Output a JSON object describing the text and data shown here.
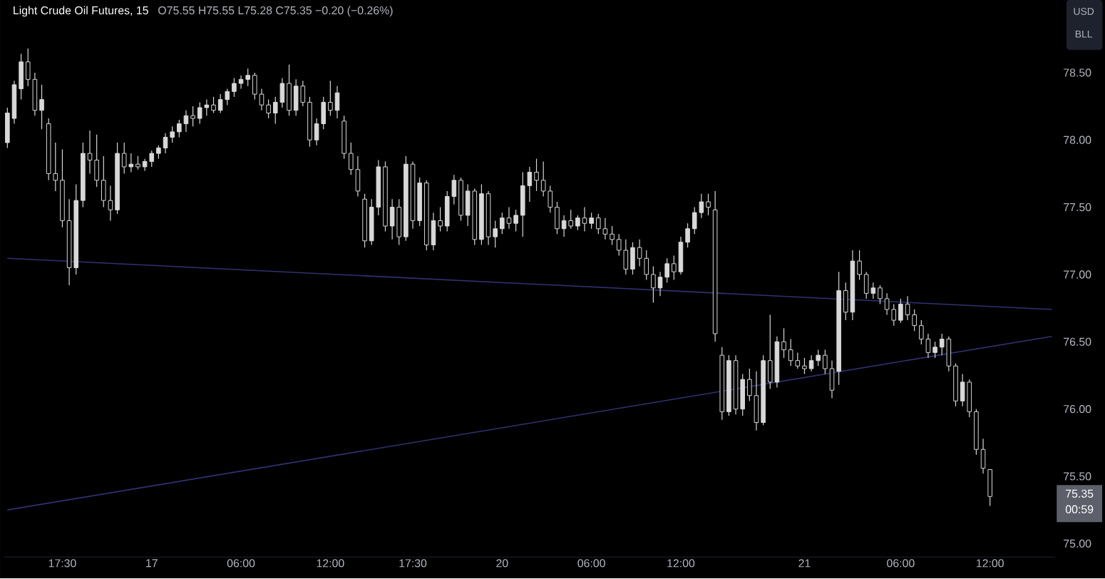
{
  "chart_data": {
    "type": "candlestick",
    "title": "Light Crude Oil Futures, 15",
    "subtitle": "O75.55 H75.55 L75.28 C75.35 −0.20 (−0.26%)",
    "annotations": [
      "USD",
      "BLL",
      "75.35",
      "00:59"
    ],
    "ylim": [
      74.9,
      79.04
    ],
    "categories": [
      null,
      null,
      null,
      null,
      null,
      null,
      null,
      null,
      "17:30",
      null,
      null,
      null,
      null,
      null,
      null,
      null,
      null,
      null,
      null,
      null,
      null,
      "17",
      null,
      null,
      null,
      null,
      null,
      null,
      null,
      null,
      null,
      null,
      null,
      null,
      "06:00",
      null,
      null,
      null,
      null,
      null,
      null,
      null,
      null,
      null,
      null,
      null,
      null,
      "12:00",
      null,
      null,
      null,
      null,
      null,
      null,
      null,
      null,
      null,
      null,
      null,
      "17:30",
      null,
      null,
      null,
      null,
      null,
      null,
      null,
      null,
      null,
      null,
      null,
      null,
      "20",
      null,
      null,
      null,
      null,
      null,
      null,
      null,
      null,
      null,
      null,
      null,
      null,
      "06:00",
      null,
      null,
      null,
      null,
      null,
      null,
      null,
      null,
      null,
      null,
      null,
      null,
      "12:00",
      null,
      null,
      null,
      null,
      null,
      null,
      null,
      null,
      null,
      null,
      null,
      null,
      null,
      null,
      null,
      null,
      null,
      "21",
      null,
      null,
      null,
      null,
      null,
      null,
      null,
      null,
      null,
      null,
      null,
      null,
      null,
      "06:00",
      null,
      null,
      null,
      null,
      null,
      null,
      null,
      null,
      null,
      null,
      null,
      null,
      "12:00",
      null,
      null,
      null,
      null,
      null,
      null,
      null,
      null,
      null
    ],
    "yticks": [
      {
        "value": 75,
        "label": "75.00"
      },
      {
        "value": 75.5,
        "label": "75.50"
      },
      {
        "value": 76,
        "label": "76.00"
      },
      {
        "value": 76.5,
        "label": "76.50"
      },
      {
        "value": 77,
        "label": "77.00"
      },
      {
        "value": 77.5,
        "label": "77.50"
      },
      {
        "value": 78,
        "label": "78.00"
      },
      {
        "value": 78.5,
        "label": "78.50"
      }
    ],
    "grid": false,
    "series": [
      {
        "type": "line",
        "color": "#2e3370",
        "values": [
          77.12,
          null,
          null,
          null,
          null,
          null,
          null,
          null,
          null,
          null,
          null,
          null,
          null,
          null,
          null,
          null,
          null,
          null,
          null,
          null,
          null,
          null,
          null,
          null,
          null,
          null,
          null,
          null,
          null,
          null,
          null,
          null,
          null,
          null,
          null,
          null,
          null,
          null,
          null,
          null,
          null,
          null,
          null,
          null,
          null,
          null,
          null,
          null,
          null,
          null,
          null,
          null,
          null,
          null,
          null,
          null,
          null,
          null,
          null,
          null,
          null,
          null,
          null,
          null,
          null,
          null,
          null,
          null,
          null,
          null,
          null,
          null,
          null,
          null,
          null,
          null,
          null,
          null,
          null,
          null,
          null,
          null,
          null,
          null,
          null,
          null,
          null,
          null,
          null,
          null,
          null,
          null,
          null,
          null,
          null,
          null,
          null,
          null,
          null,
          null,
          null,
          null,
          null,
          null,
          null,
          null,
          null,
          null,
          null,
          null,
          null,
          null,
          null,
          null,
          null,
          null,
          null,
          null,
          null,
          null,
          null,
          null,
          null,
          null,
          null,
          null,
          null,
          null,
          null,
          null,
          null,
          null,
          null,
          null,
          null,
          null,
          null,
          null,
          null,
          null,
          null,
          null,
          null,
          null,
          null,
          null,
          null,
          null,
          null,
          null,
          null,
          null,
          76.74
        ]
      },
      {
        "type": "line",
        "color": "#2e3370",
        "values": [
          75.25,
          null,
          null,
          null,
          null,
          null,
          null,
          null,
          null,
          null,
          null,
          null,
          null,
          null,
          null,
          null,
          null,
          null,
          null,
          null,
          null,
          null,
          null,
          null,
          null,
          null,
          null,
          null,
          null,
          null,
          null,
          null,
          null,
          null,
          null,
          null,
          null,
          null,
          null,
          null,
          null,
          null,
          null,
          null,
          null,
          null,
          null,
          null,
          null,
          null,
          null,
          null,
          null,
          null,
          null,
          null,
          null,
          null,
          null,
          null,
          null,
          null,
          null,
          null,
          null,
          null,
          null,
          null,
          null,
          null,
          null,
          null,
          null,
          null,
          null,
          null,
          null,
          null,
          null,
          null,
          null,
          null,
          null,
          null,
          null,
          null,
          null,
          null,
          null,
          null,
          null,
          null,
          null,
          null,
          null,
          null,
          null,
          null,
          null,
          null,
          null,
          null,
          null,
          null,
          null,
          null,
          null,
          null,
          null,
          null,
          null,
          null,
          null,
          null,
          null,
          null,
          null,
          null,
          null,
          null,
          null,
          null,
          null,
          null,
          null,
          null,
          null,
          null,
          null,
          null,
          null,
          null,
          null,
          null,
          null,
          null,
          null,
          null,
          null,
          null,
          null,
          null,
          null,
          null,
          null,
          null,
          null,
          null,
          null,
          null,
          null,
          null,
          76.54
        ]
      },
      {
        "color": "#d8d8d8",
        "ohlc": [
          [
            77.98,
            78.24,
            77.94,
            78.2
          ],
          [
            78.16,
            78.44,
            78.12,
            78.41
          ],
          [
            78.38,
            78.64,
            78.3,
            78.58
          ],
          [
            78.58,
            78.68,
            78.4,
            78.45
          ],
          [
            78.45,
            78.5,
            78.18,
            78.22
          ],
          [
            78.22,
            78.41,
            78.08,
            78.3
          ],
          [
            78.12,
            78.16,
            77.7,
            77.75
          ],
          [
            77.75,
            77.98,
            77.62,
            77.7
          ],
          [
            77.7,
            77.93,
            77.35,
            77.4
          ],
          [
            77.4,
            77.56,
            76.92,
            77.05
          ],
          [
            77.05,
            77.67,
            77.0,
            77.55
          ],
          [
            77.55,
            77.98,
            77.5,
            77.9
          ],
          [
            77.9,
            78.07,
            77.75,
            77.85
          ],
          [
            77.85,
            78.04,
            77.65,
            77.7
          ],
          [
            77.7,
            77.88,
            77.5,
            77.55
          ],
          [
            77.55,
            77.66,
            77.4,
            77.48
          ],
          [
            77.48,
            77.98,
            77.45,
            77.9
          ],
          [
            77.9,
            77.98,
            77.75,
            77.8
          ],
          [
            77.8,
            77.9,
            77.76,
            77.82
          ],
          [
            77.82,
            77.88,
            77.78,
            77.8
          ],
          [
            77.8,
            77.86,
            77.77,
            77.84
          ],
          [
            77.84,
            77.92,
            77.8,
            77.9
          ],
          [
            77.9,
            77.96,
            77.86,
            77.94
          ],
          [
            77.94,
            78.05,
            77.9,
            78.02
          ],
          [
            78.02,
            78.1,
            77.98,
            78.06
          ],
          [
            78.06,
            78.15,
            78.02,
            78.12
          ],
          [
            78.12,
            78.22,
            78.06,
            78.18
          ],
          [
            78.18,
            78.25,
            78.1,
            78.16
          ],
          [
            78.16,
            78.28,
            78.12,
            78.24
          ],
          [
            78.24,
            78.3,
            78.18,
            78.26
          ],
          [
            78.26,
            78.32,
            78.2,
            78.22
          ],
          [
            78.22,
            78.34,
            78.2,
            78.3
          ],
          [
            78.3,
            78.38,
            78.26,
            78.36
          ],
          [
            78.36,
            78.46,
            78.32,
            78.42
          ],
          [
            78.42,
            78.48,
            78.38,
            78.45
          ],
          [
            78.45,
            78.53,
            78.4,
            78.48
          ],
          [
            78.48,
            78.5,
            78.3,
            78.34
          ],
          [
            78.34,
            78.38,
            78.22,
            78.26
          ],
          [
            78.26,
            78.3,
            78.16,
            78.2
          ],
          [
            78.2,
            78.32,
            78.12,
            78.28
          ],
          [
            78.28,
            78.46,
            78.24,
            78.42
          ],
          [
            78.42,
            78.56,
            78.18,
            78.22
          ],
          [
            78.22,
            78.45,
            78.18,
            78.4
          ],
          [
            78.4,
            78.44,
            78.25,
            78.28
          ],
          [
            78.28,
            78.32,
            77.95,
            78.0
          ],
          [
            78.0,
            78.16,
            77.96,
            78.12
          ],
          [
            78.12,
            78.32,
            78.08,
            78.28
          ],
          [
            78.28,
            78.44,
            78.18,
            78.22
          ],
          [
            78.22,
            78.4,
            78.16,
            78.35
          ],
          [
            78.14,
            78.18,
            77.86,
            77.9
          ],
          [
            77.9,
            77.98,
            77.74,
            77.78
          ],
          [
            77.78,
            77.88,
            77.58,
            77.62
          ],
          [
            77.56,
            77.6,
            77.2,
            77.25
          ],
          [
            77.25,
            77.56,
            77.22,
            77.5
          ],
          [
            77.5,
            77.85,
            77.44,
            77.8
          ],
          [
            77.8,
            77.84,
            77.32,
            77.36
          ],
          [
            77.36,
            77.56,
            77.26,
            77.5
          ],
          [
            77.5,
            77.56,
            77.22,
            77.28
          ],
          [
            77.28,
            77.88,
            77.25,
            77.82
          ],
          [
            77.82,
            77.84,
            77.34,
            77.4
          ],
          [
            77.4,
            77.72,
            77.36,
            77.68
          ],
          [
            77.68,
            77.7,
            77.18,
            77.22
          ],
          [
            77.22,
            77.46,
            77.18,
            77.4
          ],
          [
            77.4,
            77.5,
            77.32,
            77.36
          ],
          [
            77.36,
            77.62,
            77.32,
            77.58
          ],
          [
            77.58,
            77.74,
            77.52,
            77.7
          ],
          [
            77.7,
            77.72,
            77.4,
            77.44
          ],
          [
            77.44,
            77.67,
            77.36,
            77.62
          ],
          [
            77.62,
            77.64,
            77.22,
            77.26
          ],
          [
            77.26,
            77.67,
            77.22,
            77.6
          ],
          [
            77.6,
            77.62,
            77.22,
            77.28
          ],
          [
            77.28,
            77.4,
            77.2,
            77.34
          ],
          [
            77.34,
            77.46,
            77.3,
            77.42
          ],
          [
            77.42,
            77.5,
            77.34,
            77.38
          ],
          [
            77.38,
            77.48,
            77.32,
            77.44
          ],
          [
            77.44,
            77.76,
            77.28,
            77.66
          ],
          [
            77.66,
            77.8,
            77.54,
            77.76
          ],
          [
            77.76,
            77.86,
            77.62,
            77.7
          ],
          [
            77.7,
            77.84,
            77.58,
            77.62
          ],
          [
            77.62,
            77.66,
            77.46,
            77.5
          ],
          [
            77.5,
            77.54,
            77.3,
            77.34
          ],
          [
            77.34,
            77.44,
            77.28,
            77.4
          ],
          [
            77.4,
            77.48,
            77.34,
            77.36
          ],
          [
            77.36,
            77.44,
            77.33,
            77.42
          ],
          [
            77.42,
            77.5,
            77.32,
            77.38
          ],
          [
            77.38,
            77.46,
            77.34,
            77.42
          ],
          [
            77.42,
            77.45,
            77.3,
            77.34
          ],
          [
            77.34,
            77.42,
            77.26,
            77.3
          ],
          [
            77.3,
            77.36,
            77.22,
            77.26
          ],
          [
            77.26,
            77.3,
            77.14,
            77.18
          ],
          [
            77.18,
            77.26,
            77.0,
            77.04
          ],
          [
            77.04,
            77.24,
            77.0,
            77.2
          ],
          [
            77.2,
            77.26,
            77.06,
            77.12
          ],
          [
            77.12,
            77.18,
            76.96,
            77.0
          ],
          [
            77.0,
            77.06,
            76.79,
            76.9
          ],
          [
            76.9,
            77.02,
            76.84,
            76.98
          ],
          [
            76.98,
            77.12,
            76.94,
            77.08
          ],
          [
            77.08,
            77.14,
            76.96,
            77.02
          ],
          [
            77.02,
            77.28,
            77.0,
            77.24
          ],
          [
            77.24,
            77.38,
            77.2,
            77.34
          ],
          [
            77.34,
            77.5,
            77.3,
            77.46
          ],
          [
            77.46,
            77.6,
            77.42,
            77.54
          ],
          [
            77.54,
            77.6,
            77.44,
            77.5
          ],
          [
            77.48,
            77.62,
            76.5,
            76.56
          ],
          [
            76.4,
            76.46,
            75.92,
            75.98
          ],
          [
            75.98,
            76.4,
            75.95,
            76.36
          ],
          [
            76.36,
            76.4,
            75.96,
            76.0
          ],
          [
            76.0,
            76.26,
            75.95,
            76.22
          ],
          [
            76.22,
            76.3,
            76.06,
            76.1
          ],
          [
            76.1,
            76.28,
            75.84,
            75.9
          ],
          [
            75.9,
            76.4,
            75.88,
            76.36
          ],
          [
            76.36,
            76.7,
            76.15,
            76.2
          ],
          [
            76.2,
            76.54,
            76.16,
            76.5
          ],
          [
            76.5,
            76.6,
            76.38,
            76.44
          ],
          [
            76.44,
            76.52,
            76.32,
            76.36
          ],
          [
            76.36,
            76.42,
            76.3,
            76.32
          ],
          [
            76.32,
            76.38,
            76.26,
            76.3
          ],
          [
            76.3,
            76.4,
            76.28,
            76.36
          ],
          [
            76.36,
            76.44,
            76.32,
            76.4
          ],
          [
            76.4,
            76.44,
            76.26,
            76.3
          ],
          [
            76.3,
            76.36,
            76.08,
            76.14
          ],
          [
            76.28,
            77.02,
            76.18,
            76.88
          ],
          [
            76.88,
            76.94,
            76.66,
            76.72
          ],
          [
            76.72,
            77.18,
            76.66,
            77.1
          ],
          [
            77.1,
            77.18,
            76.96,
            77.0
          ],
          [
            77.0,
            77.02,
            76.82,
            76.86
          ],
          [
            76.86,
            76.94,
            76.82,
            76.9
          ],
          [
            76.9,
            76.92,
            76.78,
            76.82
          ],
          [
            76.82,
            76.86,
            76.7,
            76.74
          ],
          [
            76.74,
            76.78,
            76.62,
            76.66
          ],
          [
            76.66,
            76.82,
            76.64,
            76.78
          ],
          [
            76.78,
            76.84,
            76.66,
            76.7
          ],
          [
            76.7,
            76.74,
            76.58,
            76.62
          ],
          [
            76.62,
            76.66,
            76.48,
            76.52
          ],
          [
            76.52,
            76.56,
            76.38,
            76.42
          ],
          [
            76.42,
            76.5,
            76.38,
            76.46
          ],
          [
            76.46,
            76.56,
            76.4,
            76.52
          ],
          [
            76.52,
            76.54,
            76.28,
            76.32
          ],
          [
            76.32,
            76.34,
            76.02,
            76.06
          ],
          [
            76.06,
            76.26,
            76.02,
            76.2
          ],
          [
            76.2,
            76.22,
            75.94,
            75.98
          ],
          [
            75.98,
            76.0,
            75.66,
            75.7
          ],
          [
            75.7,
            75.78,
            75.52,
            75.56
          ],
          [
            75.55,
            75.55,
            75.28,
            75.35
          ],
          null,
          null,
          null,
          null,
          null,
          null,
          null,
          null,
          null
        ]
      }
    ]
  }
}
